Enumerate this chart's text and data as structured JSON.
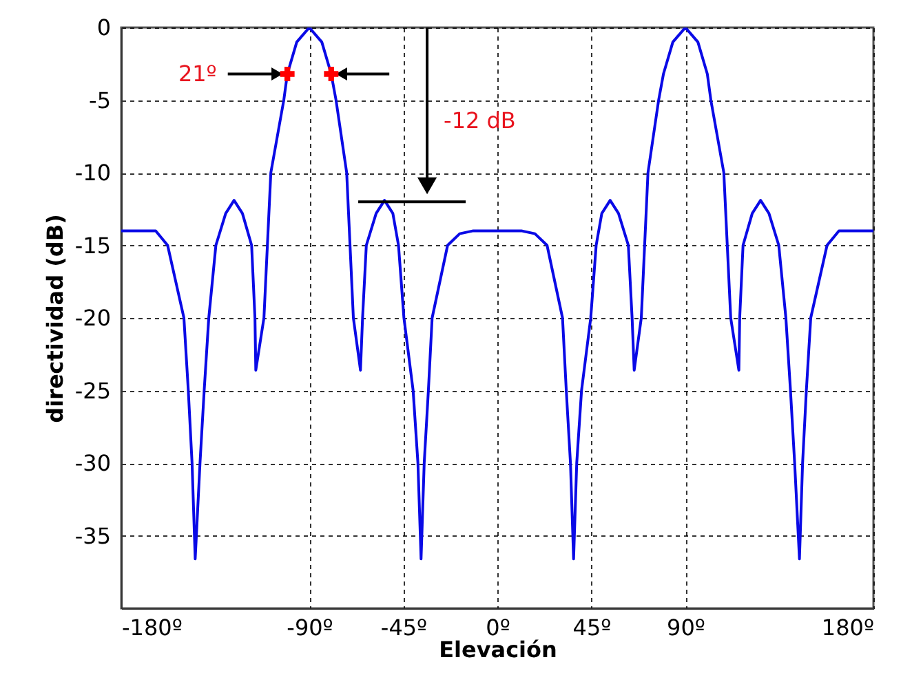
{
  "chart_data": {
    "type": "line",
    "xlabel": "Elevación",
    "ylabel": "directividad (dB)",
    "xlim": [
      -180,
      180
    ],
    "ylim": [
      -40,
      0
    ],
    "xticks": [
      {
        "value": -180,
        "label": "-180º"
      },
      {
        "value": -90,
        "label": "-90º"
      },
      {
        "value": -45,
        "label": "-45º"
      },
      {
        "value": 0,
        "label": "0º"
      },
      {
        "value": 45,
        "label": "45º"
      },
      {
        "value": 90,
        "label": "90º"
      },
      {
        "value": 180,
        "label": "180º"
      }
    ],
    "yticks": [
      0,
      -5,
      -10,
      -15,
      -20,
      -25,
      -30,
      -35
    ],
    "grid": true,
    "line_style": "solid",
    "marker": "none",
    "series": [
      {
        "color": "#0a0ae6",
        "x": [
          -180,
          -170,
          -163.5,
          -157.8,
          -150,
          -147.9,
          -146.1,
          -144.6,
          -142.3,
          -140.3,
          -138.1,
          -134.7,
          -130,
          -126,
          -122,
          -117.6,
          -116,
          -115.6,
          -111.7,
          -108.4,
          -102.2,
          -100.5,
          -96,
          -90,
          -84,
          -79.5,
          -77.2,
          -72.1,
          -68.9,
          -65.5,
          -64.5,
          -62.7,
          -58,
          -54,
          -50,
          -47.3,
          -44.7,
          -40.3,
          -38,
          -36.5,
          -35,
          -33,
          -31.2,
          -23.8,
          -18,
          -11.5,
          0,
          11.5,
          18,
          23.8,
          31.2,
          33,
          35,
          36.5,
          38,
          40.3,
          44.7,
          47.3,
          50,
          54,
          58,
          62.7,
          64.5,
          65.5,
          68.9,
          72.1,
          77.2,
          79.5,
          84,
          90,
          96,
          100.5,
          102.2,
          108.4,
          111.7,
          115.6,
          116,
          117.6,
          122,
          126,
          130,
          134.7,
          138.1,
          140.3,
          142.3,
          144.6,
          146.1,
          147.9,
          150,
          157.8,
          163.5,
          170,
          180
        ],
        "values": [
          -14,
          -14,
          -14,
          -15,
          -20,
          -25,
          -30,
          -36.6,
          -30,
          -25,
          -20,
          -15,
          -12.8,
          -11.9,
          -12.8,
          -15,
          -20,
          -23.6,
          -20,
          -10,
          -5,
          -3.2,
          -1,
          0,
          -1,
          -3.2,
          -5,
          -10,
          -20,
          -23.6,
          -20,
          -15,
          -12.8,
          -11.9,
          -12.8,
          -15,
          -20,
          -25,
          -30,
          -36.6,
          -30,
          -25,
          -20,
          -15,
          -14.2,
          -14,
          -14,
          -14,
          -14.2,
          -15,
          -20,
          -25,
          -30,
          -36.6,
          -30,
          -25,
          -20,
          -15,
          -12.8,
          -11.9,
          -12.8,
          -15,
          -20,
          -23.6,
          -20,
          -10,
          -5,
          -3.2,
          -1,
          0,
          -1,
          -3.2,
          -5,
          -10,
          -20,
          -23.6,
          -20,
          -15,
          -12.8,
          -11.9,
          -12.8,
          -15,
          -20,
          -25,
          -30,
          -36.6,
          -30,
          -25,
          -20,
          -15,
          -14,
          -14,
          -14
        ]
      },
      {
        "type": "line",
        "marker": "triangle",
        "color": "#000000",
        "x": [
          -129,
          -105.4
        ],
        "values": [
          -3.2,
          -3.2
        ]
      },
      {
        "type": "line",
        "marker": "triangle",
        "color": "#000000",
        "x": [
          -51.7,
          -74.6
        ],
        "values": [
          -3.2,
          -3.2
        ]
      },
      {
        "type": "line",
        "marker": "triangle",
        "color": "#000000",
        "x": [
          -33.6,
          -33.6
        ],
        "values": [
          0,
          -10.9
        ]
      },
      {
        "type": "scatter",
        "marker": "cross",
        "color": "#ff0000",
        "x": [
          -100.5,
          -79.5
        ],
        "values": [
          -3.2,
          -3.2
        ]
      }
    ],
    "ref_lines": [
      {
        "axis": "y",
        "value": -12,
        "color": "#000000"
      }
    ],
    "annotations": [
      {
        "text": "21º",
        "x": -129,
        "y": -3.2
      },
      "-12 dB"
    ]
  }
}
